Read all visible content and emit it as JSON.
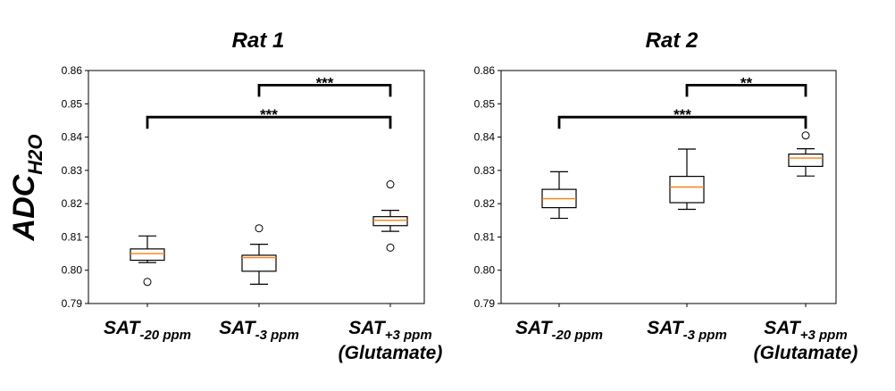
{
  "figure": {
    "ylabel_main": "ADC",
    "ylabel_sub": "H2O"
  },
  "chart_data": [
    {
      "type": "boxplot",
      "title": "Rat 1",
      "ylim": [
        0.79,
        0.86
      ],
      "yticks": [
        "0.79",
        "0.80",
        "0.81",
        "0.82",
        "0.83",
        "0.84",
        "0.85",
        "0.86"
      ],
      "categories": [
        {
          "main": "SAT",
          "sub": "-20 ppm",
          "extra": ""
        },
        {
          "main": "SAT",
          "sub": "-3 ppm",
          "extra": ""
        },
        {
          "main": "SAT",
          "sub": "+3 ppm",
          "extra": "(Glutamate)"
        }
      ],
      "boxes": [
        {
          "whislo": 0.8023,
          "q1": 0.803,
          "med": 0.805,
          "q3": 0.8064,
          "whishi": 0.8103,
          "fliers": [
            0.7965
          ]
        },
        {
          "whislo": 0.7958,
          "q1": 0.7997,
          "med": 0.8038,
          "q3": 0.8045,
          "whishi": 0.8078,
          "fliers": [
            0.8126
          ]
        },
        {
          "whislo": 0.8117,
          "q1": 0.8134,
          "med": 0.815,
          "q3": 0.8161,
          "whishi": 0.818,
          "fliers": [
            0.8258,
            0.8068
          ]
        }
      ],
      "significance": [
        {
          "from": 1,
          "to": 2,
          "y": 0.8556,
          "label": "***"
        },
        {
          "from": 0,
          "to": 2,
          "y": 0.846,
          "label": "***"
        }
      ]
    },
    {
      "type": "boxplot",
      "title": "Rat 2",
      "ylim": [
        0.79,
        0.86
      ],
      "yticks": [
        "0.79",
        "0.80",
        "0.81",
        "0.82",
        "0.83",
        "0.84",
        "0.85",
        "0.86"
      ],
      "categories": [
        {
          "main": "SAT",
          "sub": "-20 ppm",
          "extra": ""
        },
        {
          "main": "SAT",
          "sub": "-3 ppm",
          "extra": ""
        },
        {
          "main": "SAT",
          "sub": "+3 ppm",
          "extra": "(Glutamate)"
        }
      ],
      "boxes": [
        {
          "whislo": 0.8156,
          "q1": 0.8188,
          "med": 0.8215,
          "q3": 0.8243,
          "whishi": 0.8296,
          "fliers": []
        },
        {
          "whislo": 0.8183,
          "q1": 0.8203,
          "med": 0.825,
          "q3": 0.8282,
          "whishi": 0.8364,
          "fliers": []
        },
        {
          "whislo": 0.8283,
          "q1": 0.8312,
          "med": 0.8337,
          "q3": 0.8349,
          "whishi": 0.8365,
          "fliers": [
            0.8405
          ]
        }
      ],
      "significance": [
        {
          "from": 1,
          "to": 2,
          "y": 0.8556,
          "label": "**"
        },
        {
          "from": 0,
          "to": 2,
          "y": 0.846,
          "label": "***"
        }
      ]
    }
  ]
}
